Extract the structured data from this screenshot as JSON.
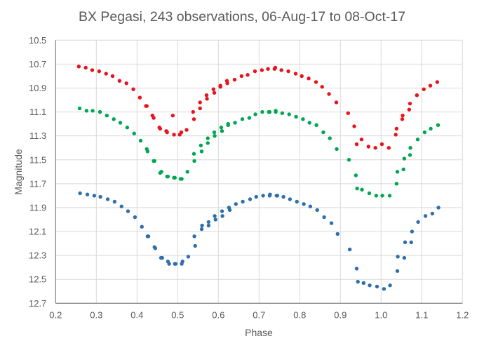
{
  "chart_data": {
    "type": "scatter",
    "title": "BX Pegasi, 243 observations, 06-Aug-17 to 08-Oct-17",
    "xlabel": "Phase",
    "ylabel": "Magnitude",
    "xlim": [
      0.2,
      1.2
    ],
    "ylim": [
      10.5,
      12.7
    ],
    "y_inverted": true,
    "grid": true,
    "legend": "none",
    "xticks": [
      "0.2",
      "0.3",
      "0.4",
      "0.5",
      "0.6",
      "0.7",
      "0.8",
      "0.9",
      "1.0",
      "1.1",
      "1.2"
    ],
    "yticks": [
      "10.5",
      "10.7",
      "10.9",
      "11.1",
      "11.3",
      "11.5",
      "11.7",
      "11.9",
      "12.1",
      "12.3",
      "12.5",
      "12.7"
    ],
    "series": [
      {
        "color": "#E8131B",
        "points": [
          [
            0.257,
            10.72
          ],
          [
            0.274,
            10.73
          ],
          [
            0.29,
            10.75
          ],
          [
            0.307,
            10.76
          ],
          [
            0.324,
            10.78
          ],
          [
            0.34,
            10.8
          ],
          [
            0.357,
            10.84
          ],
          [
            0.374,
            10.86
          ],
          [
            0.391,
            10.91
          ],
          [
            0.407,
            10.98
          ],
          [
            0.422,
            11.05
          ],
          [
            0.424,
            11.05
          ],
          [
            0.438,
            11.13
          ],
          [
            0.441,
            11.15
          ],
          [
            0.455,
            11.23
          ],
          [
            0.457,
            11.24
          ],
          [
            0.472,
            11.26
          ],
          [
            0.474,
            11.27
          ],
          [
            0.488,
            11.13
          ],
          [
            0.491,
            11.29
          ],
          [
            0.505,
            11.29
          ],
          [
            0.509,
            11.27
          ],
          [
            0.522,
            11.25
          ],
          [
            0.538,
            11.1
          ],
          [
            0.54,
            11.16
          ],
          [
            0.555,
            11.02
          ],
          [
            0.555,
            11.07
          ],
          [
            0.571,
            10.96
          ],
          [
            0.572,
            10.99
          ],
          [
            0.588,
            10.91
          ],
          [
            0.59,
            10.94
          ],
          [
            0.605,
            10.88
          ],
          [
            0.605,
            10.89
          ],
          [
            0.621,
            10.84
          ],
          [
            0.622,
            10.86
          ],
          [
            0.64,
            10.83
          ],
          [
            0.657,
            10.8
          ],
          [
            0.672,
            10.79
          ],
          [
            0.69,
            10.76
          ],
          [
            0.707,
            10.75
          ],
          [
            0.722,
            10.74
          ],
          [
            0.738,
            10.74
          ],
          [
            0.74,
            10.73
          ],
          [
            0.755,
            10.75
          ],
          [
            0.772,
            10.76
          ],
          [
            0.79,
            10.78
          ],
          [
            0.805,
            10.8
          ],
          [
            0.822,
            10.82
          ],
          [
            0.84,
            10.85
          ],
          [
            0.855,
            10.89
          ],
          [
            0.872,
            10.95
          ],
          [
            0.89,
            11.02
          ],
          [
            0.919,
            11.11
          ],
          [
            0.934,
            11.22
          ],
          [
            0.94,
            11.37
          ],
          [
            0.952,
            11.33
          ],
          [
            0.969,
            11.39
          ],
          [
            0.986,
            11.4
          ],
          [
            1.002,
            11.37
          ],
          [
            1.019,
            11.4
          ],
          [
            1.036,
            11.29
          ],
          [
            1.038,
            11.24
          ],
          [
            1.052,
            11.16
          ],
          [
            1.053,
            11.13
          ],
          [
            1.069,
            11.08
          ],
          [
            1.071,
            11.03
          ],
          [
            1.088,
            10.96
          ],
          [
            1.105,
            10.91
          ],
          [
            1.121,
            10.88
          ],
          [
            1.138,
            10.85
          ]
        ]
      },
      {
        "color": "#00A651",
        "points": [
          [
            0.259,
            11.07
          ],
          [
            0.276,
            11.09
          ],
          [
            0.291,
            11.09
          ],
          [
            0.309,
            11.1
          ],
          [
            0.326,
            11.13
          ],
          [
            0.343,
            11.16
          ],
          [
            0.359,
            11.19
          ],
          [
            0.376,
            11.23
          ],
          [
            0.393,
            11.28
          ],
          [
            0.409,
            11.34
          ],
          [
            0.424,
            11.41
          ],
          [
            0.426,
            11.43
          ],
          [
            0.441,
            11.51
          ],
          [
            0.443,
            11.51
          ],
          [
            0.457,
            11.61
          ],
          [
            0.46,
            11.6
          ],
          [
            0.474,
            11.64
          ],
          [
            0.476,
            11.64
          ],
          [
            0.491,
            11.65
          ],
          [
            0.493,
            11.65
          ],
          [
            0.507,
            11.66
          ],
          [
            0.51,
            11.66
          ],
          [
            0.524,
            11.6
          ],
          [
            0.54,
            11.45
          ],
          [
            0.541,
            11.51
          ],
          [
            0.557,
            11.38
          ],
          [
            0.559,
            11.43
          ],
          [
            0.574,
            11.32
          ],
          [
            0.574,
            11.36
          ],
          [
            0.59,
            11.27
          ],
          [
            0.591,
            11.3
          ],
          [
            0.607,
            11.23
          ],
          [
            0.609,
            11.26
          ],
          [
            0.624,
            11.2
          ],
          [
            0.624,
            11.21
          ],
          [
            0.641,
            11.19
          ],
          [
            0.659,
            11.16
          ],
          [
            0.676,
            11.15
          ],
          [
            0.691,
            11.12
          ],
          [
            0.708,
            11.1
          ],
          [
            0.724,
            11.1
          ],
          [
            0.726,
            11.1
          ],
          [
            0.741,
            11.09
          ],
          [
            0.741,
            11.1
          ],
          [
            0.757,
            11.11
          ],
          [
            0.774,
            11.12
          ],
          [
            0.791,
            11.14
          ],
          [
            0.808,
            11.16
          ],
          [
            0.824,
            11.19
          ],
          [
            0.841,
            11.21
          ],
          [
            0.858,
            11.27
          ],
          [
            0.874,
            11.32
          ],
          [
            0.891,
            11.41
          ],
          [
            0.921,
            11.5
          ],
          [
            0.938,
            11.63
          ],
          [
            0.941,
            11.74
          ],
          [
            0.953,
            11.75
          ],
          [
            0.971,
            11.78
          ],
          [
            0.988,
            11.8
          ],
          [
            1.003,
            11.8
          ],
          [
            1.021,
            11.8
          ],
          [
            1.038,
            11.7
          ],
          [
            1.04,
            11.6
          ],
          [
            1.055,
            11.58
          ],
          [
            1.057,
            11.49
          ],
          [
            1.071,
            11.46
          ],
          [
            1.072,
            11.4
          ],
          [
            1.09,
            11.33
          ],
          [
            1.107,
            11.27
          ],
          [
            1.122,
            11.24
          ],
          [
            1.14,
            11.21
          ]
        ]
      },
      {
        "color": "#2E6FAD",
        "points": [
          [
            0.26,
            11.78
          ],
          [
            0.278,
            11.79
          ],
          [
            0.295,
            11.8
          ],
          [
            0.31,
            11.81
          ],
          [
            0.328,
            11.83
          ],
          [
            0.345,
            11.85
          ],
          [
            0.362,
            11.89
          ],
          [
            0.378,
            11.93
          ],
          [
            0.395,
            11.98
          ],
          [
            0.412,
            12.06
          ],
          [
            0.426,
            12.14
          ],
          [
            0.428,
            12.14
          ],
          [
            0.443,
            12.23
          ],
          [
            0.445,
            12.24
          ],
          [
            0.459,
            12.32
          ],
          [
            0.462,
            12.32
          ],
          [
            0.476,
            12.35
          ],
          [
            0.479,
            12.37
          ],
          [
            0.493,
            12.37
          ],
          [
            0.495,
            12.37
          ],
          [
            0.51,
            12.37
          ],
          [
            0.512,
            12.35
          ],
          [
            0.526,
            12.31
          ],
          [
            0.541,
            12.14
          ],
          [
            0.543,
            12.22
          ],
          [
            0.559,
            12.08
          ],
          [
            0.56,
            12.05
          ],
          [
            0.576,
            12.02
          ],
          [
            0.576,
            12.05
          ],
          [
            0.591,
            11.97
          ],
          [
            0.593,
            12.0
          ],
          [
            0.609,
            11.93
          ],
          [
            0.61,
            11.97
          ],
          [
            0.626,
            11.9
          ],
          [
            0.628,
            11.92
          ],
          [
            0.643,
            11.87
          ],
          [
            0.66,
            11.85
          ],
          [
            0.678,
            11.83
          ],
          [
            0.693,
            11.81
          ],
          [
            0.71,
            11.8
          ],
          [
            0.726,
            11.8
          ],
          [
            0.727,
            11.79
          ],
          [
            0.743,
            11.8
          ],
          [
            0.745,
            11.8
          ],
          [
            0.76,
            11.81
          ],
          [
            0.776,
            11.83
          ],
          [
            0.793,
            11.85
          ],
          [
            0.81,
            11.87
          ],
          [
            0.826,
            11.89
          ],
          [
            0.843,
            11.92
          ],
          [
            0.86,
            11.98
          ],
          [
            0.878,
            12.03
          ],
          [
            0.893,
            12.12
          ],
          [
            0.923,
            12.25
          ],
          [
            0.94,
            12.41
          ],
          [
            0.943,
            12.52
          ],
          [
            0.957,
            12.53
          ],
          [
            0.972,
            12.55
          ],
          [
            0.99,
            12.56
          ],
          [
            1.007,
            12.58
          ],
          [
            1.022,
            12.55
          ],
          [
            1.04,
            12.43
          ],
          [
            1.041,
            12.31
          ],
          [
            1.057,
            12.32
          ],
          [
            1.059,
            12.19
          ],
          [
            1.074,
            12.19
          ],
          [
            1.076,
            12.1
          ],
          [
            1.091,
            12.02
          ],
          [
            1.109,
            11.97
          ],
          [
            1.126,
            11.95
          ],
          [
            1.141,
            11.9
          ]
        ]
      }
    ]
  }
}
